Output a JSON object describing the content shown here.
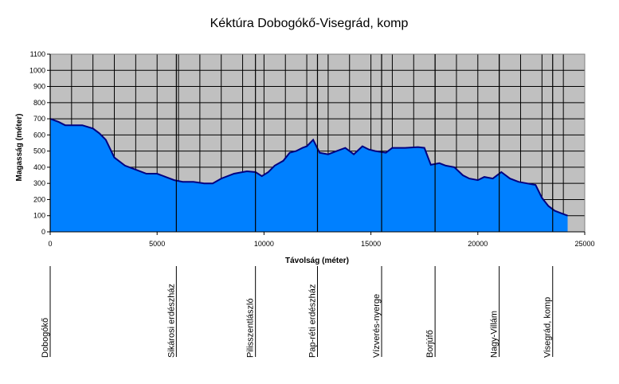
{
  "chart_data": {
    "type": "area",
    "title": "Kéktúra Dobogókő-Visegrád, komp",
    "xlabel": "Távolság (méter)",
    "ylabel": "Magasság (méter)",
    "xlim": [
      0,
      25000
    ],
    "ylim": [
      0,
      1100
    ],
    "x_ticks": [
      0,
      5000,
      10000,
      15000,
      20000,
      25000
    ],
    "y_ticks": [
      0,
      100,
      200,
      300,
      400,
      500,
      600,
      700,
      800,
      900,
      1000,
      1100
    ],
    "grid": true,
    "colors": {
      "fill": "#0080ff",
      "line": "#000080",
      "plot_bg": "#c0c0c0",
      "grid": "#000000"
    },
    "series": [
      {
        "x": [
          0,
          400,
          700,
          1000,
          1500,
          2000,
          2300,
          2600,
          3000,
          3500,
          4000,
          4500,
          5000,
          5200,
          5400,
          5800,
          6200,
          6700,
          7200,
          7600,
          8000,
          8600,
          9200,
          9600,
          9900,
          10200,
          10500,
          10900,
          11200,
          11500,
          11800,
          12000,
          12300,
          12600,
          13000,
          13400,
          13800,
          14200,
          14600,
          14900,
          15200,
          15700,
          16000,
          16600,
          17200,
          17500,
          17800,
          18200,
          18500,
          18900,
          19300,
          19600,
          20000,
          20300,
          20700,
          21100,
          21500,
          21900,
          22300,
          22700,
          23000,
          23300,
          23600,
          23900,
          24200
        ],
        "y": [
          700,
          680,
          660,
          660,
          660,
          640,
          610,
          570,
          460,
          410,
          385,
          360,
          360,
          350,
          340,
          320,
          310,
          310,
          300,
          300,
          330,
          360,
          375,
          370,
          345,
          370,
          410,
          440,
          490,
          500,
          520,
          530,
          570,
          490,
          480,
          500,
          520,
          480,
          530,
          510,
          500,
          490,
          520,
          520,
          525,
          520,
          415,
          425,
          410,
          400,
          350,
          330,
          320,
          340,
          330,
          370,
          330,
          310,
          300,
          290,
          210,
          160,
          130,
          115,
          100
        ]
      }
    ],
    "waypoints": [
      {
        "x": 0,
        "label": "Dobogókő"
      },
      {
        "x": 5900,
        "label": "Sikárosi erdészház"
      },
      {
        "x": 9600,
        "label": "Pilisszentlászló"
      },
      {
        "x": 12500,
        "label": "Pap-réti erdészház"
      },
      {
        "x": 15500,
        "label": "Vízverés-nyerge"
      },
      {
        "x": 18000,
        "label": "Borjúfő"
      },
      {
        "x": 21000,
        "label": "Nagy-Villám"
      },
      {
        "x": 23500,
        "label": "Visegrád, komp"
      }
    ]
  }
}
